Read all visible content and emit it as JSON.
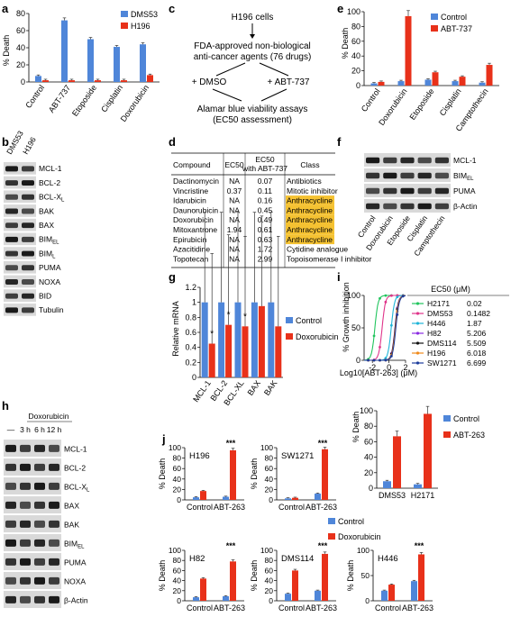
{
  "colors": {
    "blue": "#4f86d9",
    "red": "#e8311a",
    "green": "#22c55e",
    "pink": "#e0348a",
    "cyan": "#1fb5d8",
    "purple": "#8a2be2",
    "black": "#111111",
    "orange": "#f08a1c",
    "navy": "#1d3d9c",
    "highlight": "#f5c232"
  },
  "panels": {
    "a": {
      "label": "a",
      "ylabel": "% Death",
      "yticks": [
        "0",
        "20",
        "40",
        "60",
        "80"
      ],
      "legend": [
        "DMS53",
        "H196"
      ]
    },
    "b": {
      "label": "b",
      "cols": [
        "DMS53",
        "H196"
      ],
      "rows": [
        "MCL-1",
        "BCL-2",
        "BCL-XL",
        "BAK",
        "BAX",
        "BIMEL",
        "BIML",
        "PUMA",
        "NOXA",
        "BID",
        "Tubulin"
      ]
    },
    "c": {
      "label": "c",
      "lines": [
        "H196 cells",
        "FDA-approved non-biological",
        "anti-cancer agents (76 drugs)",
        "+ DMSO",
        "+ ABT-737",
        "Alamar blue viability assays",
        "(EC50 assessment)"
      ]
    },
    "d": {
      "label": "d",
      "headers": [
        "Compound",
        "EC50",
        "EC50",
        "with ABT-737",
        "Class"
      ],
      "rows": [
        [
          "Dactinomycin",
          "NA",
          "0.07",
          "Antibiotics"
        ],
        [
          "Vincristine",
          "0.37",
          "0.11",
          "Mitotic inhibitor"
        ],
        [
          "Idarubicin",
          "NA",
          "0.16",
          "Anthracycline"
        ],
        [
          "Daunorubicin",
          "NA",
          "0.45",
          "Anthracycline"
        ],
        [
          "Doxorubicin",
          "NA",
          "0.49",
          "Anthracycline"
        ],
        [
          "Mitoxantrone",
          "1.94",
          "0.61",
          "Anthracycline"
        ],
        [
          "Epirubicin",
          "NA",
          "0.63",
          "Anthracycline"
        ],
        [
          "Azacitidine",
          "NA",
          "1.72",
          "Cytidine analogue"
        ],
        [
          "Topotecan",
          "NA",
          "2.99",
          "Topoisomerase I inhibitor"
        ]
      ]
    },
    "e": {
      "label": "e",
      "ylabel": "% Death",
      "yticks": [
        "0",
        "20",
        "40",
        "60",
        "80",
        "100"
      ],
      "legend": [
        "Control",
        "ABT-737"
      ]
    },
    "f": {
      "label": "f",
      "rows": [
        "MCL-1",
        "BIMEL",
        "PUMA",
        "β-Actin"
      ],
      "cols": [
        "Control",
        "Doxorubicin",
        "Etoposide",
        "Cisplatin",
        "Camptothecin"
      ]
    },
    "g": {
      "label": "g",
      "ylabel": "Relative mRNA",
      "yticks": [
        "0",
        "0.2",
        "0.4",
        "0.6",
        "0.8",
        "1",
        "1.2"
      ],
      "legend": [
        "Control",
        "Doxorubicin"
      ]
    },
    "h": {
      "label": "h",
      "header": "Doxorubicin",
      "times": [
        "—",
        "3 h",
        "6 h",
        "12 h"
      ],
      "rows": [
        "MCL-1",
        "BCL-2",
        "BCL-XL",
        "BAX",
        "BAK",
        "BIMEL",
        "PUMA",
        "NOXA",
        "β-Actin"
      ]
    },
    "i": {
      "label": "i",
      "ylabel": "% Growth inhibition",
      "xlabel": "Log10[ABT-263] (μM)",
      "yticks": [
        "0",
        "50",
        "100"
      ],
      "xticks": [
        "-2",
        "0",
        "2"
      ],
      "legend_title": "EC50 (μM)"
    },
    "inset": {
      "ylabel": "% Death",
      "yticks": [
        "0",
        "20",
        "40",
        "60",
        "80",
        "100"
      ],
      "legend": [
        "Control",
        "ABT-263"
      ]
    },
    "j": {
      "label": "j",
      "ylabel": "% Death",
      "legend": [
        "Control",
        "Doxorubicin"
      ]
    }
  },
  "chart_data": [
    {
      "type": "bar",
      "id": "a",
      "categories": [
        "Control",
        "ABT-737",
        "Etoposide",
        "Cisplatin",
        "Doxorubicin"
      ],
      "series": [
        {
          "name": "DMS53",
          "values": [
            7,
            72,
            50,
            41,
            44
          ]
        },
        {
          "name": "H196",
          "values": [
            2,
            2,
            2,
            2,
            8
          ]
        }
      ],
      "ylim": [
        0,
        80
      ]
    },
    {
      "type": "bar",
      "id": "e",
      "categories": [
        "Control",
        "Doxorubicin",
        "Etoposide",
        "Cisplatin",
        "Camptothecin"
      ],
      "series": [
        {
          "name": "Control",
          "values": [
            3,
            6,
            8,
            6,
            4
          ]
        },
        {
          "name": "ABT-737",
          "values": [
            5,
            94,
            18,
            12,
            28
          ]
        }
      ],
      "ylim": [
        0,
        100
      ]
    },
    {
      "type": "bar",
      "id": "g",
      "categories": [
        "MCL-1",
        "BCL-2",
        "BCL-XL",
        "BAX",
        "BAK"
      ],
      "series": [
        {
          "name": "Control",
          "values": [
            1,
            1,
            1,
            1,
            1
          ]
        },
        {
          "name": "Doxorubicin",
          "values": [
            0.45,
            0.7,
            0.68,
            0.95,
            0.68
          ]
        }
      ],
      "significance": [
        "*",
        "*",
        "*",
        "",
        ""
      ],
      "ylim": [
        0,
        1.2
      ]
    },
    {
      "type": "line",
      "id": "i",
      "xlim": [
        -3,
        2
      ],
      "ylim": [
        0,
        100
      ],
      "series": [
        {
          "name": "H2171",
          "ec50": "0.02",
          "log_ec50": -1.7
        },
        {
          "name": "DMS53",
          "ec50": "0.1482",
          "log_ec50": -0.83
        },
        {
          "name": "H446",
          "ec50": "1.87",
          "log_ec50": 0.27
        },
        {
          "name": "H82",
          "ec50": "5.206",
          "log_ec50": 0.72
        },
        {
          "name": "DMS114",
          "ec50": "5.509",
          "log_ec50": 0.74
        },
        {
          "name": "H196",
          "ec50": "6.018",
          "log_ec50": 0.78
        },
        {
          "name": "SW1271",
          "ec50": "6.699",
          "log_ec50": 0.83
        }
      ]
    },
    {
      "type": "bar",
      "id": "inset",
      "categories": [
        "DMS53",
        "H2171"
      ],
      "series": [
        {
          "name": "Control",
          "values": [
            9,
            5
          ]
        },
        {
          "name": "ABT-263",
          "values": [
            67,
            96
          ]
        }
      ],
      "ylim": [
        0,
        100
      ]
    },
    {
      "type": "bar",
      "id": "j1",
      "title": "H196",
      "categories": [
        "Control",
        "ABT-263"
      ],
      "series": [
        {
          "name": "Control",
          "values": [
            5,
            6
          ]
        },
        {
          "name": "Doxorubicin",
          "values": [
            17,
            95
          ]
        }
      ],
      "ylim": [
        0,
        100
      ],
      "yticks": [
        "0",
        "20",
        "40",
        "60",
        "80",
        "100"
      ],
      "stars": "***"
    },
    {
      "type": "bar",
      "id": "j2",
      "title": "SW1271",
      "categories": [
        "Control",
        "ABT-263"
      ],
      "series": [
        {
          "name": "Control",
          "values": [
            3,
            12
          ]
        },
        {
          "name": "Doxorubicin",
          "values": [
            4,
            97
          ]
        }
      ],
      "ylim": [
        0,
        100
      ],
      "yticks": [
        "0",
        "20",
        "40",
        "60",
        "80",
        "100"
      ],
      "stars": "***"
    },
    {
      "type": "bar",
      "id": "j3",
      "title": "H82",
      "categories": [
        "Control",
        "ABT-263"
      ],
      "series": [
        {
          "name": "Control",
          "values": [
            7,
            9
          ]
        },
        {
          "name": "Doxorubicin",
          "values": [
            44,
            78
          ]
        }
      ],
      "ylim": [
        0,
        100
      ],
      "yticks": [
        "0",
        "20",
        "40",
        "60",
        "80",
        "100"
      ],
      "stars": "***"
    },
    {
      "type": "bar",
      "id": "j4",
      "title": "DMS114",
      "categories": [
        "Control",
        "ABT-263"
      ],
      "series": [
        {
          "name": "Control",
          "values": [
            14,
            20
          ]
        },
        {
          "name": "Doxorubicin",
          "values": [
            60,
            93
          ]
        }
      ],
      "ylim": [
        0,
        100
      ],
      "yticks": [
        "0",
        "20",
        "40",
        "60",
        "80",
        "100"
      ],
      "stars": "***"
    },
    {
      "type": "bar",
      "id": "j5",
      "title": "H446",
      "categories": [
        "Control",
        "ABT-263"
      ],
      "series": [
        {
          "name": "Control",
          "values": [
            20,
            39
          ]
        },
        {
          "name": "Doxorubicin",
          "values": [
            32,
            92
          ]
        }
      ],
      "ylim": [
        0,
        100
      ],
      "yticks": [
        "0",
        "50",
        "100"
      ],
      "stars": "***"
    }
  ]
}
